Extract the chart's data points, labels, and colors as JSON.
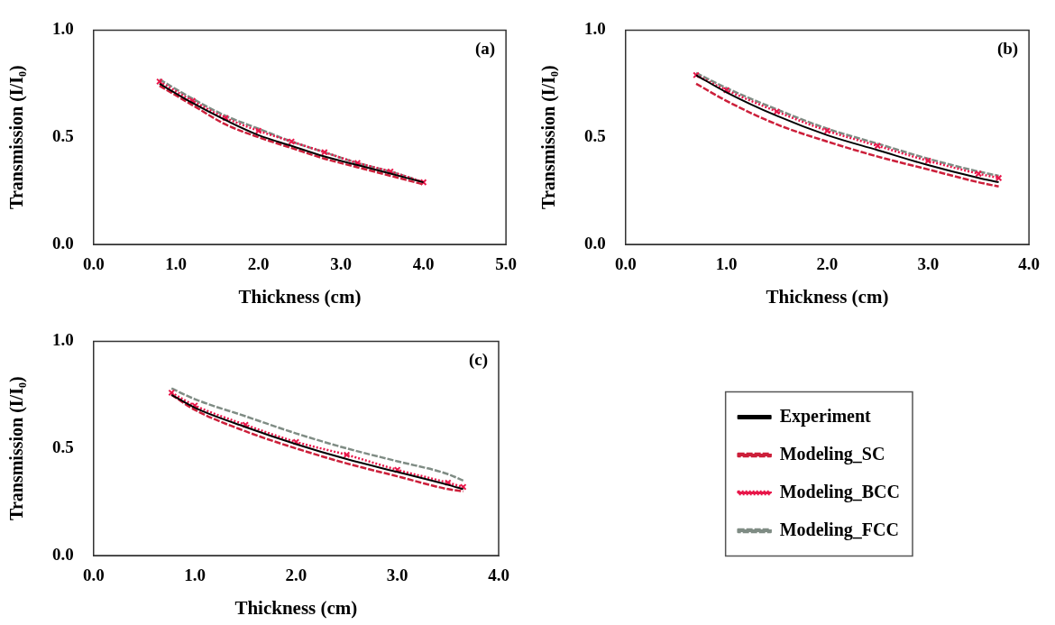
{
  "chart_data": [
    {
      "type": "line",
      "title": "(a)",
      "xlabel": "Thickness (cm)",
      "ylabel": "Transmission (I/I₀)",
      "x": [
        0.8,
        1.2,
        1.6,
        2.0,
        2.4,
        2.8,
        3.2,
        3.6,
        4.0
      ],
      "xlim": [
        0,
        5
      ],
      "xticks": [
        {
          "value": 0,
          "label": "0.0"
        },
        {
          "value": 1,
          "label": "1.0"
        },
        {
          "value": 2,
          "label": "2.0"
        },
        {
          "value": 3,
          "label": "3.0"
        },
        {
          "value": 4,
          "label": "4.0"
        },
        {
          "value": 5,
          "label": "5.0"
        }
      ],
      "ylim": [
        0,
        1
      ],
      "yticks": [
        {
          "value": 0,
          "label": "0.0"
        },
        {
          "value": 0.5,
          "label": "0.5"
        },
        {
          "value": 1,
          "label": "1.0"
        }
      ],
      "grid": false,
      "legend": false,
      "series": [
        {
          "color": "#000000",
          "line_style": "solid",
          "marker": "none",
          "values": [
            0.75,
            0.66,
            0.58,
            0.51,
            0.46,
            0.41,
            0.37,
            0.33,
            0.29
          ]
        },
        {
          "color": "#cc1f3a",
          "line_style": "dashed",
          "marker": "none",
          "values": [
            0.74,
            0.65,
            0.56,
            0.5,
            0.45,
            0.4,
            0.36,
            0.32,
            0.28
          ]
        },
        {
          "color": "#e8174a",
          "line_style": "dotted",
          "marker": "cross",
          "values": [
            0.76,
            0.67,
            0.59,
            0.53,
            0.48,
            0.43,
            0.38,
            0.34,
            0.29
          ]
        },
        {
          "color": "#7f8c84",
          "line_style": "dashed",
          "marker": "none",
          "values": [
            0.77,
            0.68,
            0.6,
            0.54,
            0.48,
            0.43,
            0.38,
            0.34,
            0.29
          ]
        }
      ]
    },
    {
      "type": "line",
      "title": "(b)",
      "xlabel": "Thickness (cm)",
      "ylabel": "Transmission (I/I₀)",
      "x": [
        0.7,
        1.0,
        1.5,
        2.0,
        2.5,
        3.0,
        3.5,
        3.7
      ],
      "xlim": [
        0,
        4
      ],
      "xticks": [
        {
          "value": 0,
          "label": "0.0"
        },
        {
          "value": 1,
          "label": "1.0"
        },
        {
          "value": 2,
          "label": "2.0"
        },
        {
          "value": 3,
          "label": "3.0"
        },
        {
          "value": 4,
          "label": "4.0"
        }
      ],
      "ylim": [
        0,
        1
      ],
      "yticks": [
        {
          "value": 0,
          "label": "0.0"
        },
        {
          "value": 0.5,
          "label": "0.5"
        },
        {
          "value": 1,
          "label": "1.0"
        }
      ],
      "grid": false,
      "legend": false,
      "series": [
        {
          "color": "#000000",
          "line_style": "solid",
          "marker": "none",
          "values": [
            0.79,
            0.71,
            0.6,
            0.51,
            0.44,
            0.37,
            0.31,
            0.29
          ]
        },
        {
          "color": "#cc1f3a",
          "line_style": "dashed",
          "marker": "none",
          "values": [
            0.75,
            0.67,
            0.56,
            0.48,
            0.41,
            0.35,
            0.29,
            0.27
          ]
        },
        {
          "color": "#e8174a",
          "line_style": "dotted",
          "marker": "cross",
          "values": [
            0.79,
            0.72,
            0.62,
            0.53,
            0.46,
            0.39,
            0.33,
            0.31
          ]
        },
        {
          "color": "#7f8c84",
          "line_style": "dashed",
          "marker": "none",
          "values": [
            0.8,
            0.73,
            0.63,
            0.54,
            0.47,
            0.4,
            0.34,
            0.32
          ]
        }
      ]
    },
    {
      "type": "line",
      "title": "(c)",
      "xlabel": "Thickness (cm)",
      "ylabel": "Transmission (I/I₀)",
      "x": [
        0.77,
        1.0,
        1.5,
        2.0,
        2.5,
        3.0,
        3.5,
        3.65
      ],
      "xlim": [
        0,
        4
      ],
      "xticks": [
        {
          "value": 0,
          "label": "0.0"
        },
        {
          "value": 1,
          "label": "1.0"
        },
        {
          "value": 2,
          "label": "2.0"
        },
        {
          "value": 3,
          "label": "3.0"
        },
        {
          "value": 4,
          "label": "4.0"
        }
      ],
      "ylim": [
        0,
        1
      ],
      "yticks": [
        {
          "value": 0,
          "label": "0.0"
        },
        {
          "value": 0.5,
          "label": "0.5"
        },
        {
          "value": 1,
          "label": "1.0"
        }
      ],
      "grid": false,
      "legend": "right",
      "series": [
        {
          "name": "Experiment",
          "color": "#000000",
          "line_style": "solid",
          "marker": "none",
          "values": [
            0.75,
            0.69,
            0.6,
            0.52,
            0.45,
            0.39,
            0.33,
            0.31
          ]
        },
        {
          "name": "Modeling_SC",
          "color": "#cc1f3a",
          "line_style": "dashed",
          "marker": "none",
          "values": [
            0.75,
            0.68,
            0.58,
            0.5,
            0.43,
            0.37,
            0.31,
            0.3
          ]
        },
        {
          "name": "Modeling_BCC",
          "color": "#e8174a",
          "line_style": "dotted",
          "marker": "cross",
          "values": [
            0.76,
            0.7,
            0.61,
            0.53,
            0.47,
            0.4,
            0.34,
            0.32
          ]
        },
        {
          "name": "Modeling_FCC",
          "color": "#7f8c84",
          "line_style": "dashed",
          "marker": "none",
          "values": [
            0.78,
            0.73,
            0.65,
            0.57,
            0.5,
            0.44,
            0.38,
            0.35
          ]
        }
      ]
    }
  ]
}
